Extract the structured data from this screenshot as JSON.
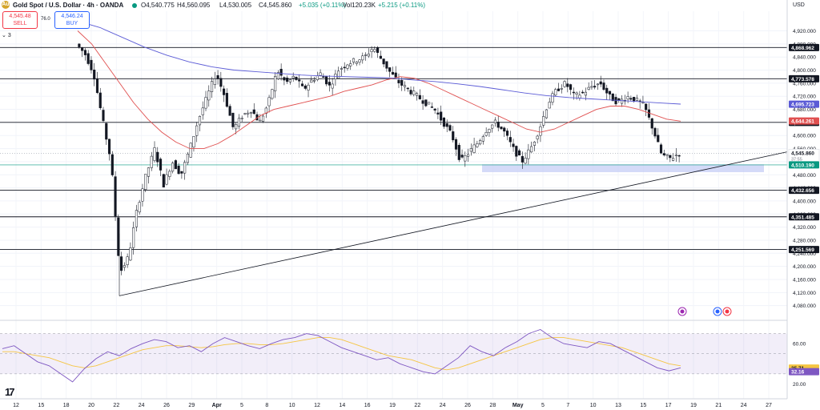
{
  "header": {
    "title": "Gold Spot / U.S. Dollar · 4h · OANDA",
    "open": "O4,540.775",
    "high": "H4,560.095",
    "low": "L4,530.005",
    "close": "C4,545.860",
    "change": "+5.035 (+0.11%)",
    "volume": "Vol120.23K",
    "vol_change": "+5.215 (+0.11%)"
  },
  "trade": {
    "sell_price": "4,545.48",
    "sell_label": "SELL",
    "buy_price": "4,546.24",
    "buy_label": "BUY",
    "spread": "76.0"
  },
  "indicator_count": "3",
  "currency": "USD",
  "colors": {
    "up": "#089981",
    "down": "#f23645",
    "candle": "#131722",
    "ma_fast": "#e05050",
    "ma_slow": "#5b5bd6",
    "rsi": "#7e57c2",
    "rsi_ma": "#f5c542",
    "zone": "#c5cdf5",
    "current_line": "#089981"
  },
  "chart_data": [
    {
      "type": "candlestick",
      "price_axis": {
        "min": 4040,
        "max": 4980,
        "ticks": [
          "4,920.000",
          "4,880.000",
          "4,840.000",
          "4,800.000",
          "4,760.000",
          "4,720.000",
          "4,680.000",
          "4,640.000",
          "4,600.000",
          "4,560.000",
          "4,520.000",
          "4,480.000",
          "4,440.000",
          "4,400.000",
          "4,360.000",
          "4,320.000",
          "4,280.000",
          "4,240.000",
          "4,200.000",
          "4,160.000",
          "4,120.000",
          "4,080.000"
        ]
      },
      "date_axis": {
        "labels": [
          "12",
          "15",
          "18",
          "20",
          "22",
          "24",
          "26",
          "29",
          "Apr",
          "5",
          "8",
          "10",
          "12",
          "14",
          "16",
          "19",
          "22",
          "24",
          "26",
          "28",
          "May",
          "5",
          "7",
          "10",
          "13",
          "15",
          "17",
          "19",
          "21",
          "24",
          "27"
        ]
      },
      "horizontal_levels": [
        {
          "value": 4868.962,
          "label": "4,868.962"
        },
        {
          "value": 4773.578,
          "label": "4,773.578"
        },
        {
          "value": 4640.146,
          "label": "4,640.146"
        },
        {
          "value": 4432.656,
          "label": "4,432.656"
        },
        {
          "value": 4351.485,
          "label": "4,351.485"
        },
        {
          "value": 4251.569,
          "label": "4,251.569"
        }
      ],
      "current_price": {
        "value": 4545.86,
        "label": "4,545.860",
        "countdown": "37:55"
      },
      "marker_price": {
        "value": 4510.19,
        "label": "4,510.190"
      },
      "ma_labels": [
        {
          "name": "MA slow",
          "value": 4695.723,
          "label": "4,695.723"
        },
        {
          "name": "MA fast",
          "value": 4644.261,
          "label": "4,644.261"
        }
      ],
      "support_zone": {
        "from": 4488,
        "to": 4512
      },
      "trendline": {
        "from": 4110,
        "to": 4550
      },
      "ohlc_path": [
        4880,
        4850,
        4790,
        4650,
        4520,
        4180,
        4230,
        4380,
        4480,
        4560,
        4450,
        4520,
        4480,
        4560,
        4650,
        4720,
        4790,
        4720,
        4620,
        4660,
        4680,
        4640,
        4700,
        4800,
        4760,
        4780,
        4740,
        4770,
        4790,
        4750,
        4800,
        4820,
        4830,
        4840,
        4870,
        4830,
        4790,
        4760,
        4740,
        4720,
        4700,
        4680,
        4640,
        4600,
        4520,
        4550,
        4580,
        4620,
        4640,
        4610,
        4560,
        4520,
        4560,
        4620,
        4700,
        4740,
        4760,
        4720,
        4730,
        4750,
        4760,
        4720,
        4700,
        4720,
        4710,
        4690,
        4620,
        4540,
        4530,
        4546
      ],
      "ma_fast": [
        4920,
        4880,
        4820,
        4760,
        4700,
        4650,
        4610,
        4580,
        4560,
        4560,
        4575,
        4600,
        4630,
        4660,
        4680,
        4690,
        4700,
        4710,
        4720,
        4735,
        4745,
        4755,
        4770,
        4780,
        4775,
        4760,
        4740,
        4720,
        4700,
        4680,
        4660,
        4640,
        4620,
        4610,
        4620,
        4640,
        4660,
        4680,
        4690,
        4690,
        4680,
        4665,
        4650,
        4644
      ],
      "ma_slow": [
        4950,
        4930,
        4900,
        4870,
        4845,
        4825,
        4810,
        4800,
        4795,
        4790,
        4785,
        4782,
        4780,
        4778,
        4776,
        4770,
        4765,
        4758,
        4750,
        4740,
        4730,
        4722,
        4716,
        4712,
        4708,
        4704,
        4700,
        4696
      ]
    },
    {
      "type": "line",
      "name": "RSI",
      "axis": {
        "ticks": [
          "60.00",
          "20.00"
        ]
      },
      "labels": [
        {
          "value": 35.71,
          "label": "35.71"
        },
        {
          "value": 32.16,
          "label": "32.16"
        }
      ],
      "levels": [
        70,
        50,
        30
      ],
      "rsi": [
        55,
        58,
        50,
        42,
        38,
        30,
        22,
        35,
        45,
        52,
        48,
        55,
        60,
        64,
        62,
        56,
        58,
        52,
        60,
        66,
        62,
        58,
        55,
        60,
        64,
        66,
        70,
        68,
        62,
        56,
        52,
        48,
        44,
        46,
        40,
        36,
        32,
        30,
        38,
        46,
        58,
        52,
        48,
        56,
        62,
        70,
        74,
        66,
        60,
        58,
        56,
        62,
        60,
        54,
        48,
        42,
        36,
        33,
        36
      ],
      "rsi_ma": [
        52,
        52,
        50,
        48,
        46,
        42,
        38,
        36,
        38,
        42,
        46,
        50,
        54,
        56,
        58,
        58,
        57,
        56,
        57,
        59,
        60,
        60,
        59,
        59,
        60,
        62,
        64,
        66,
        66,
        64,
        60,
        56,
        52,
        48,
        46,
        44,
        40,
        36,
        34,
        36,
        40,
        44,
        48,
        52,
        56,
        60,
        64,
        66,
        66,
        64,
        62,
        60,
        58,
        56,
        52,
        48,
        44,
        40,
        38
      ]
    }
  ]
}
